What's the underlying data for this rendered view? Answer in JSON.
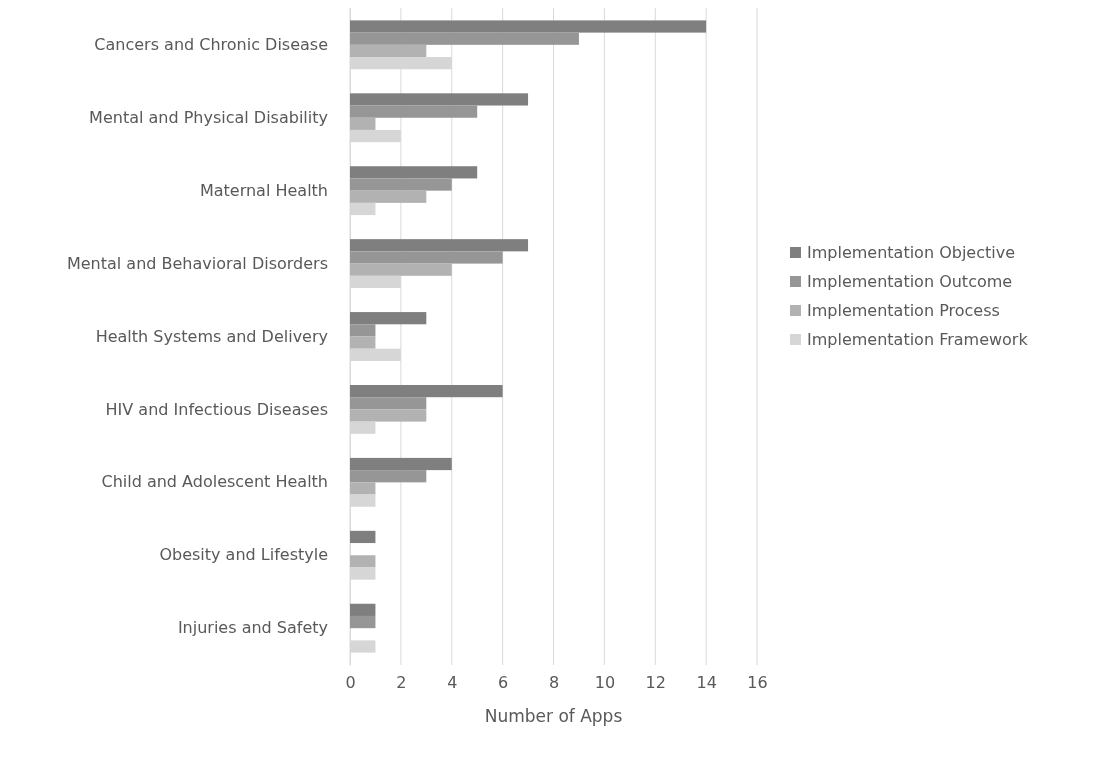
{
  "chart_data": {
    "type": "bar",
    "orientation": "horizontal",
    "xlabel": "Number of Apps",
    "categories": [
      "Cancers and Chronic Disease",
      "Mental and Physical Disability",
      "Maternal Health",
      "Mental and Behavioral Disorders",
      "Health Systems and Delivery",
      "HIV and Infectious Diseases",
      "Child and Adolescent Health",
      "Obesity and Lifestyle",
      "Injuries and Safety"
    ],
    "series": [
      {
        "name": "Implementation Objective",
        "color": "#7f7f7f",
        "values": [
          14,
          7,
          5,
          7,
          3,
          6,
          4,
          1,
          1
        ]
      },
      {
        "name": "Implementation Outcome",
        "color": "#969696",
        "values": [
          9,
          5,
          4,
          6,
          1,
          3,
          3,
          0,
          1
        ]
      },
      {
        "name": "Implementation Process",
        "color": "#b2b2b2",
        "values": [
          3,
          1,
          3,
          4,
          1,
          3,
          1,
          1,
          0
        ]
      },
      {
        "name": "Implementation Framework",
        "color": "#d6d6d6",
        "values": [
          4,
          2,
          1,
          2,
          2,
          1,
          1,
          1,
          1
        ]
      }
    ],
    "xlim": [
      0,
      16
    ],
    "xticks": [
      0,
      2,
      4,
      6,
      8,
      10,
      12,
      14,
      16
    ],
    "grid": "x",
    "legend": "right"
  }
}
